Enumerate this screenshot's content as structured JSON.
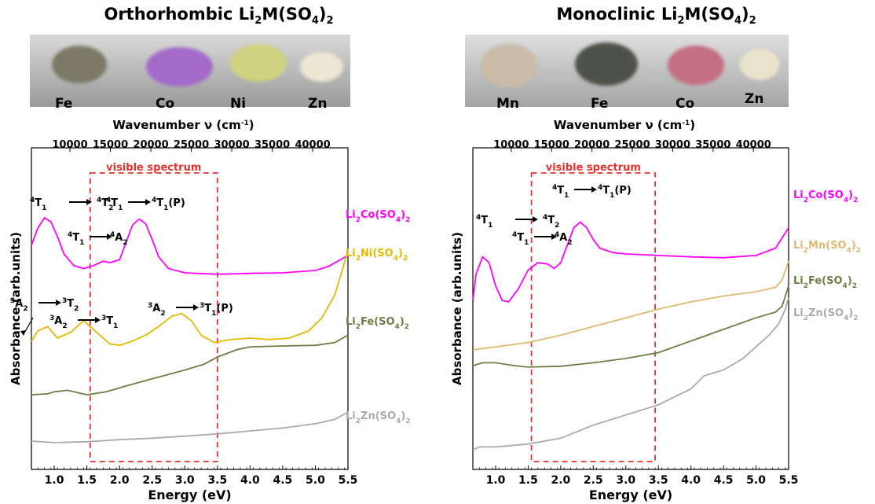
{
  "panels": [
    {
      "title_main": "Orthorhombic Li",
      "title_sub1": "2",
      "title_mid": "M(SO",
      "title_sub2": "4",
      "title_end": ")",
      "title_sub3": "2",
      "samples": [
        {
          "label": "Fe",
          "color": "#7c7a66"
        },
        {
          "label": "Co",
          "color": "#a36ac9"
        },
        {
          "label": "Ni",
          "color": "#cfd27e"
        },
        {
          "label": "Zn",
          "color": "#ece6d2"
        }
      ]
    },
    {
      "title_main": "Monoclinic Li",
      "title_sub1": "2",
      "title_mid": "M(SO",
      "title_sub2": "4",
      "title_end": ")",
      "title_sub3": "2",
      "samples": [
        {
          "label": "Mn",
          "color": "#c9bba6"
        },
        {
          "label": "Fe",
          "color": "#4e524a"
        },
        {
          "label": "Co",
          "color": "#c46f82"
        },
        {
          "label": "Zn",
          "color": "#ebe3cc"
        }
      ]
    }
  ],
  "chart_data": [
    {
      "type": "line",
      "xlabel": "Energy (eV)",
      "ylabel": "Absorbance (arb.units)",
      "top_axis_label": "Wavenumber ν (cm-1)",
      "xlim": [
        0.65,
        5.5
      ],
      "x_ticks": [
        1.0,
        1.5,
        2.0,
        2.5,
        3.0,
        3.5,
        4.0,
        4.5,
        5.0,
        5.5
      ],
      "x_tick_labels": [
        "1.0",
        "1.5",
        "2.0",
        "2.5",
        "3.0",
        "3.5",
        "4.0",
        "4.5",
        "5.0",
        "5.5"
      ],
      "top_ticks": [
        10000,
        15000,
        20000,
        25000,
        30000,
        35000,
        40000
      ],
      "top_tick_labels": [
        "10000",
        "15000",
        "20000",
        "25000",
        "30000",
        "35000",
        "40000"
      ],
      "visible_spectrum": {
        "label": "visible spectrum",
        "range": [
          1.55,
          3.5
        ]
      },
      "series": [
        {
          "name_main": "Li",
          "name_sub1": "2",
          "name_mid": "Co(SO",
          "name_sub2": "4",
          "name_end": ")",
          "name_sub3": "2",
          "color": "#ff00ff",
          "points": [
            [
              0.65,
              0.74
            ],
            [
              0.75,
              0.8
            ],
            [
              0.85,
              0.835
            ],
            [
              0.95,
              0.82
            ],
            [
              1.05,
              0.77
            ],
            [
              1.15,
              0.71
            ],
            [
              1.3,
              0.67
            ],
            [
              1.45,
              0.66
            ],
            [
              1.6,
              0.67
            ],
            [
              1.75,
              0.685
            ],
            [
              1.85,
              0.68
            ],
            [
              2.0,
              0.69
            ],
            [
              2.1,
              0.75
            ],
            [
              2.2,
              0.81
            ],
            [
              2.3,
              0.83
            ],
            [
              2.4,
              0.815
            ],
            [
              2.5,
              0.76
            ],
            [
              2.6,
              0.7
            ],
            [
              2.75,
              0.66
            ],
            [
              3.0,
              0.645
            ],
            [
              3.5,
              0.64
            ],
            [
              4.0,
              0.643
            ],
            [
              4.5,
              0.645
            ],
            [
              5.0,
              0.653
            ],
            [
              5.2,
              0.667
            ],
            [
              5.5,
              0.705
            ]
          ]
        },
        {
          "name_main": "Li",
          "name_sub1": "2",
          "name_mid": "Ni(SO",
          "name_sub2": "4",
          "name_end": ")",
          "name_sub3": "2",
          "color": "#e6b800",
          "points": [
            [
              0.65,
              0.41
            ],
            [
              0.75,
              0.445
            ],
            [
              0.9,
              0.46
            ],
            [
              1.05,
              0.42
            ],
            [
              1.25,
              0.44
            ],
            [
              1.45,
              0.48
            ],
            [
              1.6,
              0.45
            ],
            [
              1.75,
              0.42
            ],
            [
              1.85,
              0.4
            ],
            [
              2.0,
              0.395
            ],
            [
              2.2,
              0.41
            ],
            [
              2.4,
              0.43
            ],
            [
              2.6,
              0.46
            ],
            [
              2.8,
              0.495
            ],
            [
              2.95,
              0.505
            ],
            [
              3.1,
              0.48
            ],
            [
              3.25,
              0.43
            ],
            [
              3.45,
              0.405
            ],
            [
              3.7,
              0.415
            ],
            [
              4.0,
              0.42
            ],
            [
              4.3,
              0.415
            ],
            [
              4.6,
              0.42
            ],
            [
              4.9,
              0.445
            ],
            [
              5.1,
              0.49
            ],
            [
              5.3,
              0.57
            ],
            [
              5.5,
              0.72
            ]
          ]
        },
        {
          "name_main": "Li",
          "name_sub1": "2",
          "name_mid": "Fe(SO",
          "name_sub2": "4",
          "name_end": ")",
          "name_sub3": "2",
          "color": "#6f7d44",
          "points": [
            [
              0.65,
              0.225
            ],
            [
              0.9,
              0.228
            ],
            [
              1.0,
              0.235
            ],
            [
              1.2,
              0.24
            ],
            [
              1.5,
              0.225
            ],
            [
              1.8,
              0.235
            ],
            [
              2.1,
              0.255
            ],
            [
              2.5,
              0.28
            ],
            [
              3.0,
              0.31
            ],
            [
              3.3,
              0.33
            ],
            [
              3.5,
              0.355
            ],
            [
              3.8,
              0.38
            ],
            [
              4.0,
              0.39
            ],
            [
              4.5,
              0.393
            ],
            [
              5.0,
              0.395
            ],
            [
              5.3,
              0.405
            ],
            [
              5.5,
              0.43
            ]
          ]
        },
        {
          "name_main": "Li",
          "name_sub1": "2",
          "name_mid": "Zn(SO",
          "name_sub2": "4",
          "name_end": ")",
          "name_sub3": "2",
          "color": "#aaaaaa",
          "points": [
            [
              0.65,
              0.065
            ],
            [
              1.0,
              0.06
            ],
            [
              1.5,
              0.063
            ],
            [
              2.0,
              0.07
            ],
            [
              2.5,
              0.075
            ],
            [
              3.0,
              0.082
            ],
            [
              3.5,
              0.09
            ],
            [
              4.0,
              0.1
            ],
            [
              4.5,
              0.11
            ],
            [
              5.0,
              0.125
            ],
            [
              5.3,
              0.14
            ],
            [
              5.5,
              0.165
            ]
          ]
        }
      ],
      "annotations": [
        {
          "id": "co-t1-t2-left",
          "a": "4",
          "b": "T",
          "c": "1",
          "d": "4",
          "e": "T",
          "f": "2",
          "g": ""
        },
        {
          "id": "co-t1-a2",
          "a": "4",
          "b": "T",
          "c": "1",
          "d": "4",
          "e": "A",
          "f": "2",
          "g": ""
        },
        {
          "id": "co-t1-t1p",
          "a": "4",
          "b": "T",
          "c": "1",
          "d": "4",
          "e": "T",
          "f": "1",
          "g": "(P)"
        },
        {
          "id": "ni-a2-t2",
          "a": "3",
          "b": "A",
          "c": "2",
          "d": "3",
          "e": "T",
          "f": "2",
          "g": ""
        },
        {
          "id": "ni-a2-t1",
          "a": "3",
          "b": "A",
          "c": "2",
          "d": "3",
          "e": "T",
          "f": "1",
          "g": ""
        },
        {
          "id": "ni-a2-t1p",
          "a": "3",
          "b": "A",
          "c": "2",
          "d": "3",
          "e": "T",
          "f": "1",
          "g": "(P)"
        }
      ]
    },
    {
      "type": "line",
      "xlabel": "Energy (eV)",
      "ylabel": "Absorbance (arb.units)",
      "top_axis_label": "Wavenumber ν (cm-1)",
      "xlim": [
        0.65,
        5.5
      ],
      "x_ticks": [
        1.0,
        1.5,
        2.0,
        2.5,
        3.0,
        3.5,
        4.0,
        4.5,
        5.0,
        5.5
      ],
      "x_tick_labels": [
        "1.0",
        "1.5",
        "2.0",
        "2.5",
        "3.0",
        "3.5",
        "4.0",
        "4.5",
        "5.0",
        "5.5"
      ],
      "top_ticks": [
        10000,
        15000,
        20000,
        25000,
        30000,
        35000,
        40000
      ],
      "top_tick_labels": [
        "10000",
        "15000",
        "20000",
        "25000",
        "30000",
        "35000",
        "40000"
      ],
      "visible_spectrum": {
        "label": "visible spectrum",
        "range": [
          1.55,
          3.45
        ]
      },
      "series": [
        {
          "name_main": "Li",
          "name_sub1": "2",
          "name_mid": "Co(SO",
          "name_sub2": "4",
          "name_end": ")",
          "name_sub3": "2",
          "color": "#ff00ff",
          "points": [
            [
              0.65,
              0.55
            ],
            [
              0.7,
              0.64
            ],
            [
              0.8,
              0.7
            ],
            [
              0.9,
              0.68
            ],
            [
              1.0,
              0.6
            ],
            [
              1.1,
              0.55
            ],
            [
              1.2,
              0.545
            ],
            [
              1.35,
              0.59
            ],
            [
              1.5,
              0.655
            ],
            [
              1.65,
              0.68
            ],
            [
              1.8,
              0.675
            ],
            [
              1.9,
              0.66
            ],
            [
              2.0,
              0.68
            ],
            [
              2.1,
              0.74
            ],
            [
              2.2,
              0.8
            ],
            [
              2.3,
              0.82
            ],
            [
              2.4,
              0.8
            ],
            [
              2.5,
              0.76
            ],
            [
              2.6,
              0.73
            ],
            [
              2.8,
              0.715
            ],
            [
              3.0,
              0.71
            ],
            [
              3.5,
              0.705
            ],
            [
              4.0,
              0.7
            ],
            [
              4.5,
              0.697
            ],
            [
              5.0,
              0.705
            ],
            [
              5.3,
              0.73
            ],
            [
              5.5,
              0.8
            ]
          ]
        },
        {
          "name_main": "Li",
          "name_sub1": "2",
          "name_mid": "Mn(SO",
          "name_sub2": "4",
          "name_end": ")",
          "name_sub3": "2",
          "color": "#e0b870",
          "points": [
            [
              0.65,
              0.38
            ],
            [
              1.0,
              0.39
            ],
            [
              1.5,
              0.405
            ],
            [
              2.0,
              0.43
            ],
            [
              2.5,
              0.46
            ],
            [
              3.0,
              0.49
            ],
            [
              3.5,
              0.52
            ],
            [
              4.0,
              0.545
            ],
            [
              4.5,
              0.565
            ],
            [
              5.0,
              0.58
            ],
            [
              5.3,
              0.595
            ],
            [
              5.4,
              0.62
            ],
            [
              5.5,
              0.685
            ]
          ]
        },
        {
          "name_main": "Li",
          "name_sub1": "2",
          "name_mid": "Fe(SO",
          "name_sub2": "4",
          "name_end": ")",
          "name_sub3": "2",
          "color": "#6f7d44",
          "points": [
            [
              0.65,
              0.325
            ],
            [
              0.8,
              0.335
            ],
            [
              1.0,
              0.335
            ],
            [
              1.3,
              0.325
            ],
            [
              1.5,
              0.32
            ],
            [
              2.0,
              0.323
            ],
            [
              2.5,
              0.335
            ],
            [
              3.0,
              0.35
            ],
            [
              3.5,
              0.37
            ],
            [
              4.0,
              0.41
            ],
            [
              4.5,
              0.45
            ],
            [
              5.0,
              0.49
            ],
            [
              5.3,
              0.51
            ],
            [
              5.4,
              0.53
            ],
            [
              5.5,
              0.6
            ]
          ]
        },
        {
          "name_main": "Li",
          "name_sub1": "2",
          "name_mid": "Zn(SO",
          "name_sub2": "4",
          "name_end": ")",
          "name_sub3": "2",
          "color": "#aaaaaa",
          "points": [
            [
              0.65,
              0.035
            ],
            [
              0.75,
              0.045
            ],
            [
              1.0,
              0.045
            ],
            [
              1.5,
              0.055
            ],
            [
              2.0,
              0.075
            ],
            [
              2.5,
              0.12
            ],
            [
              3.0,
              0.155
            ],
            [
              3.5,
              0.19
            ],
            [
              4.0,
              0.245
            ],
            [
              4.2,
              0.29
            ],
            [
              4.5,
              0.31
            ],
            [
              4.8,
              0.35
            ],
            [
              5.0,
              0.39
            ],
            [
              5.2,
              0.43
            ],
            [
              5.35,
              0.47
            ],
            [
              5.45,
              0.52
            ],
            [
              5.5,
              0.56
            ]
          ]
        }
      ],
      "annotations": [
        {
          "id": "co-t1-t2-left",
          "a": "4",
          "b": "T",
          "c": "1",
          "d": "4",
          "e": "T",
          "f": "2",
          "g": ""
        },
        {
          "id": "co-t1-a2",
          "a": "4",
          "b": "T",
          "c": "1",
          "d": "4",
          "e": "A",
          "f": "2",
          "g": ""
        },
        {
          "id": "co-t1-t1p",
          "a": "4",
          "b": "T",
          "c": "1",
          "d": "4",
          "e": "T",
          "f": "1",
          "g": "(P)"
        }
      ]
    }
  ]
}
